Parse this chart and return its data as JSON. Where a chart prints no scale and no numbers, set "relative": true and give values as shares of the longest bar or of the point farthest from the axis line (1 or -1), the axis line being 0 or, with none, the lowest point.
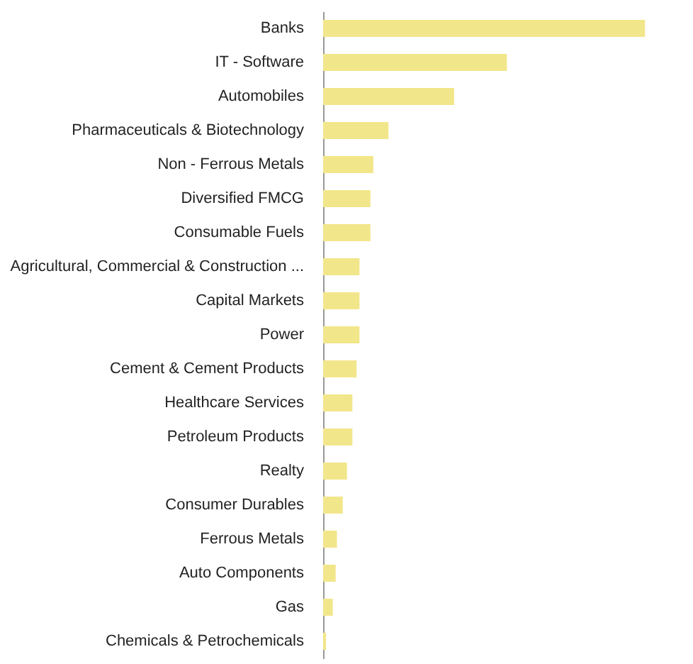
{
  "chart_data": {
    "type": "bar",
    "orientation": "horizontal",
    "relative": true,
    "categories": [
      "Banks",
      "IT - Software",
      "Automobiles",
      "Pharmaceuticals & Biotechnology",
      "Non - Ferrous Metals",
      "Diversified FMCG",
      "Consumable Fuels",
      "Agricultural, Commercial & Construction ...",
      "Capital Markets",
      "Power",
      "Cement & Cement Products",
      "Healthcare Services",
      "Petroleum Products",
      "Realty",
      "Consumer Durables",
      "Ferrous Metals",
      "Auto Components",
      "Gas",
      "Chemicals & Petrochemicals"
    ],
    "values": [
      1,
      0.571,
      0.407,
      0.203,
      0.156,
      0.147,
      0.147,
      0.113,
      0.113,
      0.113,
      0.104,
      0.091,
      0.091,
      0.074,
      0.061,
      0.043,
      0.039,
      0.03,
      0.009
    ],
    "color": "#f2e68a"
  }
}
